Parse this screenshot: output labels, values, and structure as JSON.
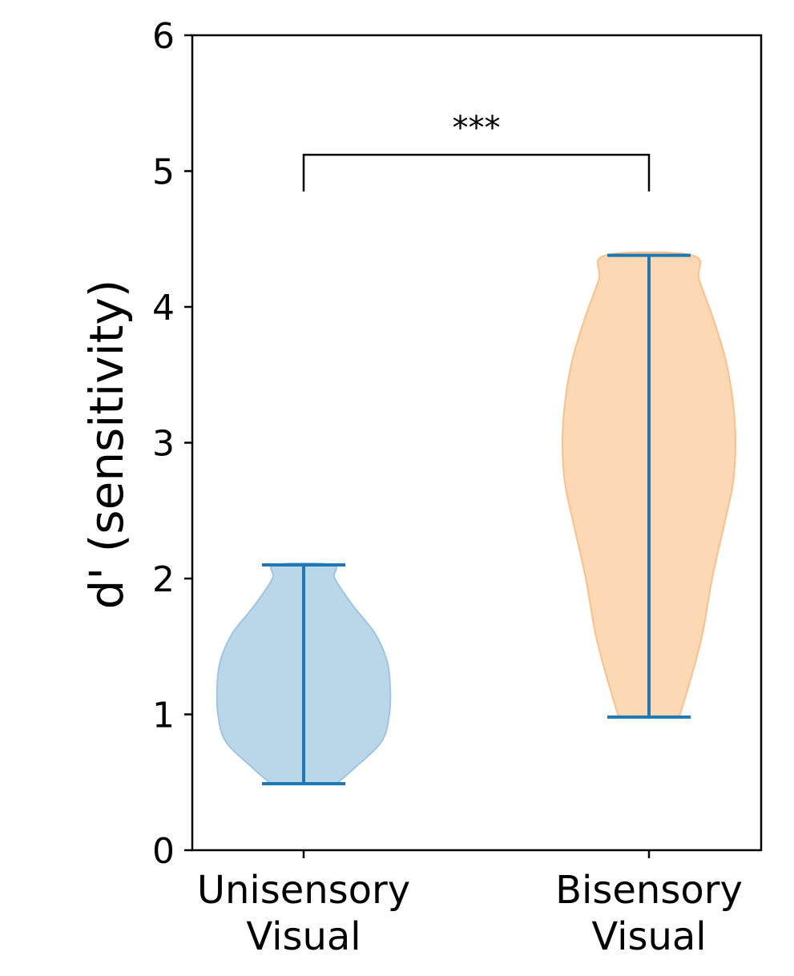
{
  "chart_data": {
    "type": "violin",
    "title": "",
    "xlabel": "",
    "ylabel": "d' (sensitivity)",
    "ylim": [
      0,
      6
    ],
    "yticks": [
      "0",
      "1",
      "2",
      "3",
      "4",
      "5",
      "6"
    ],
    "grid": false,
    "categories": [
      {
        "lines": [
          "Unisensory",
          "Visual"
        ]
      },
      {
        "lines": [
          "Bisensory",
          "Visual"
        ]
      }
    ],
    "series": [
      {
        "min": 0.49,
        "max": 2.1,
        "fill_color": "#bad6e9",
        "edge_color": "#9fc5e2",
        "line_color": "#1f77b4",
        "density": [
          [
            0.49,
            0.38
          ],
          [
            0.6,
            0.58
          ],
          [
            0.8,
            0.9
          ],
          [
            1.0,
            0.99
          ],
          [
            1.2,
            1.0
          ],
          [
            1.4,
            0.96
          ],
          [
            1.6,
            0.82
          ],
          [
            1.8,
            0.57
          ],
          [
            2.0,
            0.36
          ],
          [
            2.1,
            0.33
          ]
        ]
      },
      {
        "min": 0.98,
        "max": 4.38,
        "fill_color": "#fdd8b5",
        "edge_color": "#fbc08a",
        "line_color": "#1f77b4",
        "density": [
          [
            0.98,
            0.35
          ],
          [
            1.3,
            0.5
          ],
          [
            1.6,
            0.62
          ],
          [
            2.0,
            0.73
          ],
          [
            2.4,
            0.87
          ],
          [
            2.7,
            0.97
          ],
          [
            3.0,
            1.0
          ],
          [
            3.3,
            0.97
          ],
          [
            3.6,
            0.89
          ],
          [
            3.9,
            0.75
          ],
          [
            4.2,
            0.58
          ],
          [
            4.38,
            0.5
          ]
        ]
      }
    ],
    "annotation": {
      "text": "***",
      "from_category": 0,
      "to_category": 1,
      "y_bracket": 5.12,
      "y_ends": 4.85
    }
  }
}
